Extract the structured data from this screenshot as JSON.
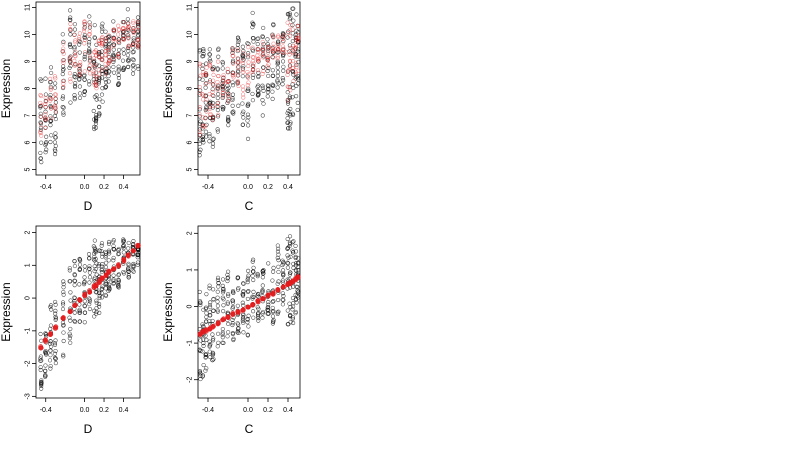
{
  "chart_data": [
    {
      "type": "scatter",
      "xlabel": "D",
      "ylabel": "Expression",
      "xlim": [
        -0.5,
        0.57
      ],
      "ylim": [
        4.8,
        11.2
      ],
      "xticks": [
        -0.4,
        0.0,
        0.2,
        0.4
      ],
      "xtick_labels": [
        "-0.4",
        "0.0",
        "0.2",
        "0.4"
      ],
      "yticks": [
        5,
        6,
        7,
        8,
        9,
        10,
        11
      ],
      "ytick_labels": [
        "5",
        "6",
        "7",
        "8",
        "9",
        "10",
        "11"
      ],
      "grid": false,
      "series": [
        {
          "color": "#000000",
          "marker": "open-circle",
          "x_values": [
            -0.45,
            -0.4,
            -0.35,
            -0.3,
            -0.22,
            -0.15,
            -0.1,
            -0.05,
            0.0,
            0.05,
            0.1,
            0.12,
            0.15,
            0.18,
            0.22,
            0.25,
            0.3,
            0.35,
            0.4,
            0.45,
            0.5,
            0.55
          ],
          "y_spread": [
            [
              5.0,
              8.5
            ],
            [
              5.5,
              8.5
            ],
            [
              6.0,
              9.0
            ],
            [
              5.5,
              8.5
            ],
            [
              7.0,
              10.8
            ],
            [
              7.0,
              11.0
            ],
            [
              7.5,
              10.5
            ],
            [
              7.5,
              10.0
            ],
            [
              7.5,
              10.5
            ],
            [
              8.0,
              11.0
            ],
            [
              6.5,
              10.5
            ],
            [
              6.5,
              10.0
            ],
            [
              7.0,
              10.0
            ],
            [
              7.5,
              10.5
            ],
            [
              8.0,
              10.5
            ],
            [
              8.0,
              10.0
            ],
            [
              8.5,
              10.5
            ],
            [
              8.0,
              10.0
            ],
            [
              8.5,
              10.5
            ],
            [
              8.5,
              11.0
            ],
            [
              8.5,
              10.5
            ],
            [
              8.5,
              10.8
            ]
          ]
        },
        {
          "color": "#e41a1c",
          "marker": "open-circle",
          "x_values": [
            -0.45,
            -0.4,
            -0.35,
            -0.3,
            -0.22,
            -0.15,
            -0.1,
            -0.05,
            0.0,
            0.05,
            0.1,
            0.12,
            0.15,
            0.18,
            0.22,
            0.25,
            0.3,
            0.35,
            0.4,
            0.45,
            0.5,
            0.55
          ],
          "y_spread": [
            [
              6.2,
              7.8
            ],
            [
              6.5,
              8.0
            ],
            [
              6.8,
              8.5
            ],
            [
              7.0,
              8.5
            ],
            [
              8.0,
              10.0
            ],
            [
              8.0,
              10.5
            ],
            [
              8.5,
              10.0
            ],
            [
              8.5,
              10.5
            ],
            [
              8.0,
              10.5
            ],
            [
              8.5,
              10.5
            ],
            [
              8.0,
              9.5
            ],
            [
              8.0,
              9.5
            ],
            [
              8.5,
              9.8
            ],
            [
              8.5,
              10.0
            ],
            [
              8.5,
              10.0
            ],
            [
              8.8,
              10.0
            ],
            [
              9.0,
              10.2
            ],
            [
              9.0,
              10.5
            ],
            [
              9.2,
              10.5
            ],
            [
              9.5,
              10.5
            ],
            [
              9.5,
              10.5
            ],
            [
              9.5,
              10.6
            ]
          ]
        }
      ]
    },
    {
      "type": "scatter",
      "xlabel": "C",
      "ylabel": "Expression",
      "xlim": [
        -0.5,
        0.52
      ],
      "ylim": [
        4.8,
        11.2
      ],
      "xticks": [
        -0.4,
        0.0,
        0.2,
        0.4
      ],
      "xtick_labels": [
        "-0.4",
        "0.0",
        "0.2",
        "0.4"
      ],
      "yticks": [
        5,
        6,
        7,
        8,
        9,
        10,
        11
      ],
      "ytick_labels": [
        "5",
        "6",
        "7",
        "8",
        "9",
        "10",
        "11"
      ],
      "grid": false,
      "series": [
        {
          "color": "#000000",
          "marker": "open-circle",
          "x_values": [
            -0.48,
            -0.45,
            -0.42,
            -0.38,
            -0.35,
            -0.3,
            -0.25,
            -0.2,
            -0.15,
            -0.1,
            -0.05,
            0.0,
            0.05,
            0.1,
            0.15,
            0.2,
            0.25,
            0.3,
            0.35,
            0.4,
            0.42,
            0.45,
            0.48,
            0.5
          ],
          "y_spread": [
            [
              5.5,
              9.5
            ],
            [
              6.0,
              9.5
            ],
            [
              6.0,
              9.5
            ],
            [
              6.0,
              9.5
            ],
            [
              5.5,
              9.5
            ],
            [
              6.0,
              9.5
            ],
            [
              7.0,
              9.0
            ],
            [
              6.5,
              9.0
            ],
            [
              7.0,
              9.5
            ],
            [
              7.0,
              10.0
            ],
            [
              6.5,
              10.0
            ],
            [
              6.0,
              10.0
            ],
            [
              7.5,
              10.8
            ],
            [
              7.5,
              10.0
            ],
            [
              7.0,
              10.5
            ],
            [
              7.5,
              10.0
            ],
            [
              7.5,
              10.5
            ],
            [
              8.0,
              10.0
            ],
            [
              8.0,
              10.5
            ],
            [
              6.5,
              11.0
            ],
            [
              6.5,
              10.8
            ],
            [
              7.0,
              11.0
            ],
            [
              7.5,
              10.8
            ],
            [
              7.0,
              10.5
            ]
          ]
        },
        {
          "color": "#e41a1c",
          "marker": "open-circle",
          "x_values": [
            -0.48,
            -0.45,
            -0.42,
            -0.38,
            -0.35,
            -0.3,
            -0.25,
            -0.2,
            -0.15,
            -0.1,
            -0.05,
            0.0,
            0.05,
            0.1,
            0.15,
            0.2,
            0.25,
            0.3,
            0.35,
            0.4,
            0.42,
            0.45,
            0.48,
            0.5
          ],
          "y_spread": [
            [
              6.0,
              9.0
            ],
            [
              6.5,
              9.0
            ],
            [
              6.5,
              9.0
            ],
            [
              7.0,
              9.0
            ],
            [
              6.5,
              9.0
            ],
            [
              7.0,
              9.0
            ],
            [
              7.5,
              9.0
            ],
            [
              7.5,
              9.0
            ],
            [
              8.0,
              9.5
            ],
            [
              8.0,
              9.5
            ],
            [
              7.5,
              9.5
            ],
            [
              8.0,
              9.8
            ],
            [
              8.5,
              9.8
            ],
            [
              8.5,
              9.5
            ],
            [
              8.5,
              9.8
            ],
            [
              8.8,
              9.8
            ],
            [
              9.0,
              10.0
            ],
            [
              9.0,
              10.0
            ],
            [
              9.2,
              10.0
            ],
            [
              7.5,
              10.5
            ],
            [
              7.5,
              10.5
            ],
            [
              8.0,
              10.5
            ],
            [
              8.5,
              10.5
            ],
            [
              8.5,
              10.5
            ]
          ]
        }
      ]
    },
    {
      "type": "scatter",
      "xlabel": "D",
      "ylabel": "Expression",
      "xlim": [
        -0.5,
        0.57
      ],
      "ylim": [
        -3.05,
        2.2
      ],
      "xticks": [
        -0.4,
        0.0,
        0.2,
        0.4
      ],
      "xtick_labels": [
        "-0.4",
        "0.0",
        "0.2",
        "0.4"
      ],
      "yticks": [
        -3,
        -2,
        -1,
        0,
        1,
        2
      ],
      "ytick_labels": [
        "-3",
        "-2",
        "-1",
        "0",
        "1",
        "2"
      ],
      "grid": false,
      "series": [
        {
          "color": "#000000",
          "marker": "open-circle",
          "x_values": [
            -0.45,
            -0.4,
            -0.35,
            -0.3,
            -0.22,
            -0.15,
            -0.1,
            -0.05,
            0.0,
            0.05,
            0.1,
            0.12,
            0.15,
            0.18,
            0.22,
            0.25,
            0.3,
            0.35,
            0.4,
            0.45,
            0.5,
            0.55
          ],
          "y_spread": [
            [
              -2.9,
              -1.0
            ],
            [
              -2.5,
              -0.8
            ],
            [
              -2.2,
              -0.2
            ],
            [
              -2.0,
              0.0
            ],
            [
              -1.8,
              0.8
            ],
            [
              -1.5,
              1.2
            ],
            [
              -1.0,
              1.2
            ],
            [
              -0.8,
              1.5
            ],
            [
              -0.8,
              1.2
            ],
            [
              -0.5,
              1.5
            ],
            [
              -0.8,
              1.8
            ],
            [
              -0.5,
              1.8
            ],
            [
              -0.5,
              1.5
            ],
            [
              0.0,
              1.8
            ],
            [
              0.0,
              1.5
            ],
            [
              0.2,
              1.8
            ],
            [
              0.2,
              1.8
            ],
            [
              0.3,
              1.5
            ],
            [
              0.5,
              1.8
            ],
            [
              0.6,
              1.8
            ],
            [
              0.8,
              1.8
            ],
            [
              1.0,
              1.6
            ]
          ]
        },
        {
          "color": "#e41a1c",
          "marker": "filled-circle",
          "x_values": [
            -0.45,
            -0.4,
            -0.35,
            -0.3,
            -0.22,
            -0.15,
            -0.1,
            -0.05,
            0.0,
            0.05,
            0.1,
            0.12,
            0.15,
            0.18,
            0.22,
            0.25,
            0.3,
            0.35,
            0.4,
            0.45,
            0.5,
            0.55
          ],
          "y_values": [
            -1.5,
            -1.3,
            -1.1,
            -0.9,
            -0.6,
            -0.4,
            -0.2,
            -0.05,
            0.1,
            0.2,
            0.35,
            0.4,
            0.5,
            0.6,
            0.7,
            0.8,
            0.9,
            1.0,
            1.15,
            1.3,
            1.45,
            1.6
          ]
        }
      ]
    },
    {
      "type": "scatter",
      "xlabel": "C",
      "ylabel": "Expression",
      "xlim": [
        -0.5,
        0.52
      ],
      "ylim": [
        -2.5,
        2.2
      ],
      "xticks": [
        -0.4,
        0.0,
        0.2,
        0.4
      ],
      "xtick_labels": [
        "-0.4",
        "0.0",
        "0.2",
        "0.4"
      ],
      "yticks": [
        -2,
        -1,
        0,
        1,
        2
      ],
      "ytick_labels": [
        "-2",
        "-1",
        "0",
        "1",
        "2"
      ],
      "grid": false,
      "series": [
        {
          "color": "#000000",
          "marker": "open-circle",
          "x_values": [
            -0.48,
            -0.45,
            -0.42,
            -0.38,
            -0.35,
            -0.3,
            -0.25,
            -0.2,
            -0.15,
            -0.1,
            -0.05,
            0.0,
            0.05,
            0.1,
            0.15,
            0.2,
            0.25,
            0.3,
            0.35,
            0.4,
            0.42,
            0.45,
            0.48,
            0.5
          ],
          "y_spread": [
            [
              -2.4,
              0.5
            ],
            [
              -2.0,
              0.3
            ],
            [
              -1.8,
              0.5
            ],
            [
              -1.5,
              0.8
            ],
            [
              -1.5,
              0.5
            ],
            [
              -1.5,
              0.8
            ],
            [
              -1.2,
              0.8
            ],
            [
              -1.0,
              1.0
            ],
            [
              -1.0,
              0.5
            ],
            [
              -1.0,
              0.8
            ],
            [
              -0.8,
              0.8
            ],
            [
              -0.8,
              1.0
            ],
            [
              -0.5,
              1.5
            ],
            [
              -0.5,
              1.0
            ],
            [
              -0.5,
              1.2
            ],
            [
              -0.2,
              1.5
            ],
            [
              -0.5,
              1.5
            ],
            [
              -0.3,
              1.8
            ],
            [
              0.0,
              1.5
            ],
            [
              -0.5,
              2.0
            ],
            [
              -0.5,
              2.0
            ],
            [
              -0.5,
              1.8
            ],
            [
              -0.3,
              1.8
            ],
            [
              0.0,
              1.5
            ]
          ]
        },
        {
          "color": "#e41a1c",
          "marker": "filled-circle",
          "x_values": [
            -0.48,
            -0.45,
            -0.42,
            -0.38,
            -0.35,
            -0.3,
            -0.25,
            -0.2,
            -0.15,
            -0.1,
            -0.05,
            0.0,
            0.05,
            0.1,
            0.15,
            0.2,
            0.25,
            0.3,
            0.35,
            0.4,
            0.42,
            0.45,
            0.48,
            0.5
          ],
          "y_values": [
            -0.75,
            -0.7,
            -0.65,
            -0.6,
            -0.55,
            -0.45,
            -0.35,
            -0.3,
            -0.2,
            -0.15,
            -0.1,
            0.0,
            0.05,
            0.15,
            0.2,
            0.3,
            0.35,
            0.45,
            0.55,
            0.6,
            0.65,
            0.7,
            0.75,
            0.8
          ]
        }
      ]
    }
  ]
}
